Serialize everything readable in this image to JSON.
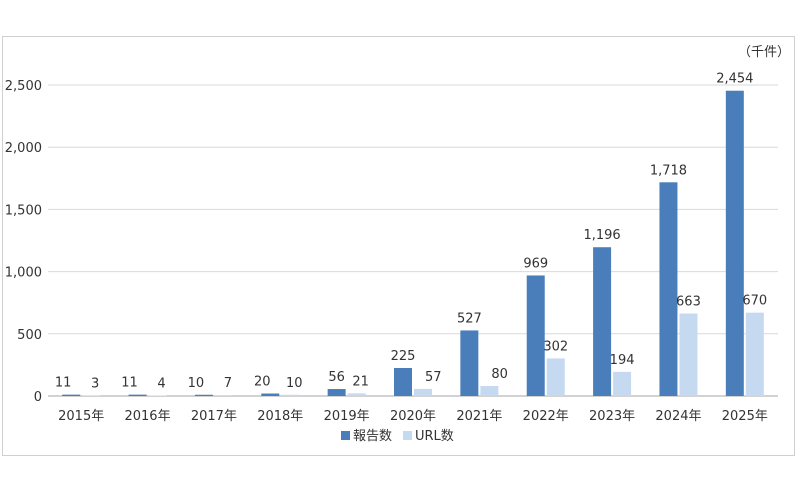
{
  "chart_data": {
    "type": "bar",
    "unit_label": "（千件）",
    "categories": [
      "2015年",
      "2016年",
      "2017年",
      "2018年",
      "2019年",
      "2020年",
      "2021年",
      "2022年",
      "2023年",
      "2024年",
      "2025年"
    ],
    "series": [
      {
        "name": "報告数",
        "color": "#4a7ebb",
        "values": [
          11,
          11,
          10,
          20,
          56,
          225,
          527,
          969,
          1196,
          1718,
          2454
        ]
      },
      {
        "name": "URL数",
        "color": "#c5d9f1",
        "values": [
          3,
          4,
          7,
          10,
          21,
          57,
          80,
          302,
          194,
          663,
          670
        ]
      }
    ],
    "value_labels": [
      [
        "11",
        "11",
        "10",
        "20",
        "56",
        "225",
        "527",
        "969",
        "1,196",
        "1,718",
        "2,454"
      ],
      [
        "3",
        "4",
        "7",
        "10",
        "21",
        "57",
        "80",
        "302",
        "194",
        "663",
        "670"
      ]
    ],
    "ylim": [
      0,
      2500
    ],
    "yticks": [
      0,
      500,
      1000,
      1500,
      2000,
      2500
    ],
    "ytick_labels": [
      "0",
      "500",
      "1,000",
      "1,500",
      "2,000",
      "2,500"
    ],
    "grid": true,
    "legend_position": "bottom"
  }
}
